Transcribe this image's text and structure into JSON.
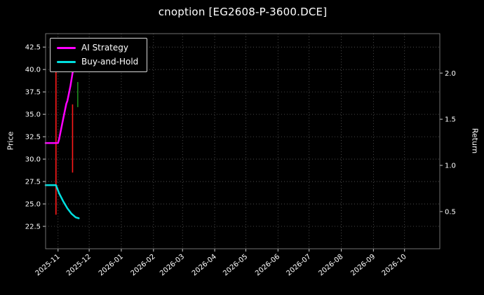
{
  "chart_data": {
    "type": "line",
    "title": "cnoption [EG2608-P-3600.DCE]",
    "ylabel": "Price",
    "ylabel_right": "Return",
    "grid": true,
    "legend_position": "upper-left",
    "x_axis": {
      "unit": "days-from-plot-start",
      "range": [
        0,
        380
      ],
      "ticks": [
        {
          "label": "2025-11",
          "day": 12
        },
        {
          "label": "2025-12",
          "day": 42
        },
        {
          "label": "2026-01",
          "day": 73
        },
        {
          "label": "2026-02",
          "day": 104
        },
        {
          "label": "2026-03",
          "day": 132
        },
        {
          "label": "2026-04",
          "day": 163
        },
        {
          "label": "2026-05",
          "day": 193
        },
        {
          "label": "2026-06",
          "day": 224
        },
        {
          "label": "2026-07",
          "day": 254
        },
        {
          "label": "2026-08",
          "day": 285
        },
        {
          "label": "2026-09",
          "day": 316
        },
        {
          "label": "2026-10",
          "day": 346
        }
      ]
    },
    "y_left": {
      "range": [
        20,
        44
      ],
      "ticks": [
        22.5,
        25.0,
        27.5,
        30.0,
        32.5,
        35.0,
        37.5,
        40.0,
        42.5
      ]
    },
    "y_right": {
      "range": [
        0.097,
        2.427
      ],
      "ticks": [
        0.5,
        1.0,
        1.5,
        2.0
      ]
    },
    "series": [
      {
        "name": "AI Strategy",
        "color": "#ff00ff",
        "width": 2.5,
        "points": [
          [
            0,
            31.8
          ],
          [
            12,
            31.8
          ],
          [
            13,
            32.2
          ],
          [
            17,
            34.5
          ],
          [
            20,
            36.2
          ],
          [
            21,
            36.5
          ],
          [
            24,
            38.2
          ],
          [
            27,
            40.3
          ]
        ]
      },
      {
        "name": "Buy-and-Hold",
        "color": "#00e0e0",
        "width": 2.5,
        "points": [
          [
            0,
            27.1
          ],
          [
            10,
            27.1
          ],
          [
            13,
            26.2
          ],
          [
            17,
            25.3
          ],
          [
            21,
            24.5
          ],
          [
            25,
            23.9
          ],
          [
            29,
            23.5
          ],
          [
            32,
            23.4
          ]
        ]
      }
    ],
    "candles": [
      {
        "day": 10,
        "low": 23.8,
        "high": 41.3,
        "color": "#ff1a1a"
      },
      {
        "day": 26,
        "low": 28.5,
        "high": 36.1,
        "color": "#ff1a1a"
      },
      {
        "day": 31,
        "low": 35.8,
        "high": 38.6,
        "color": "#1e8c1e"
      }
    ]
  }
}
